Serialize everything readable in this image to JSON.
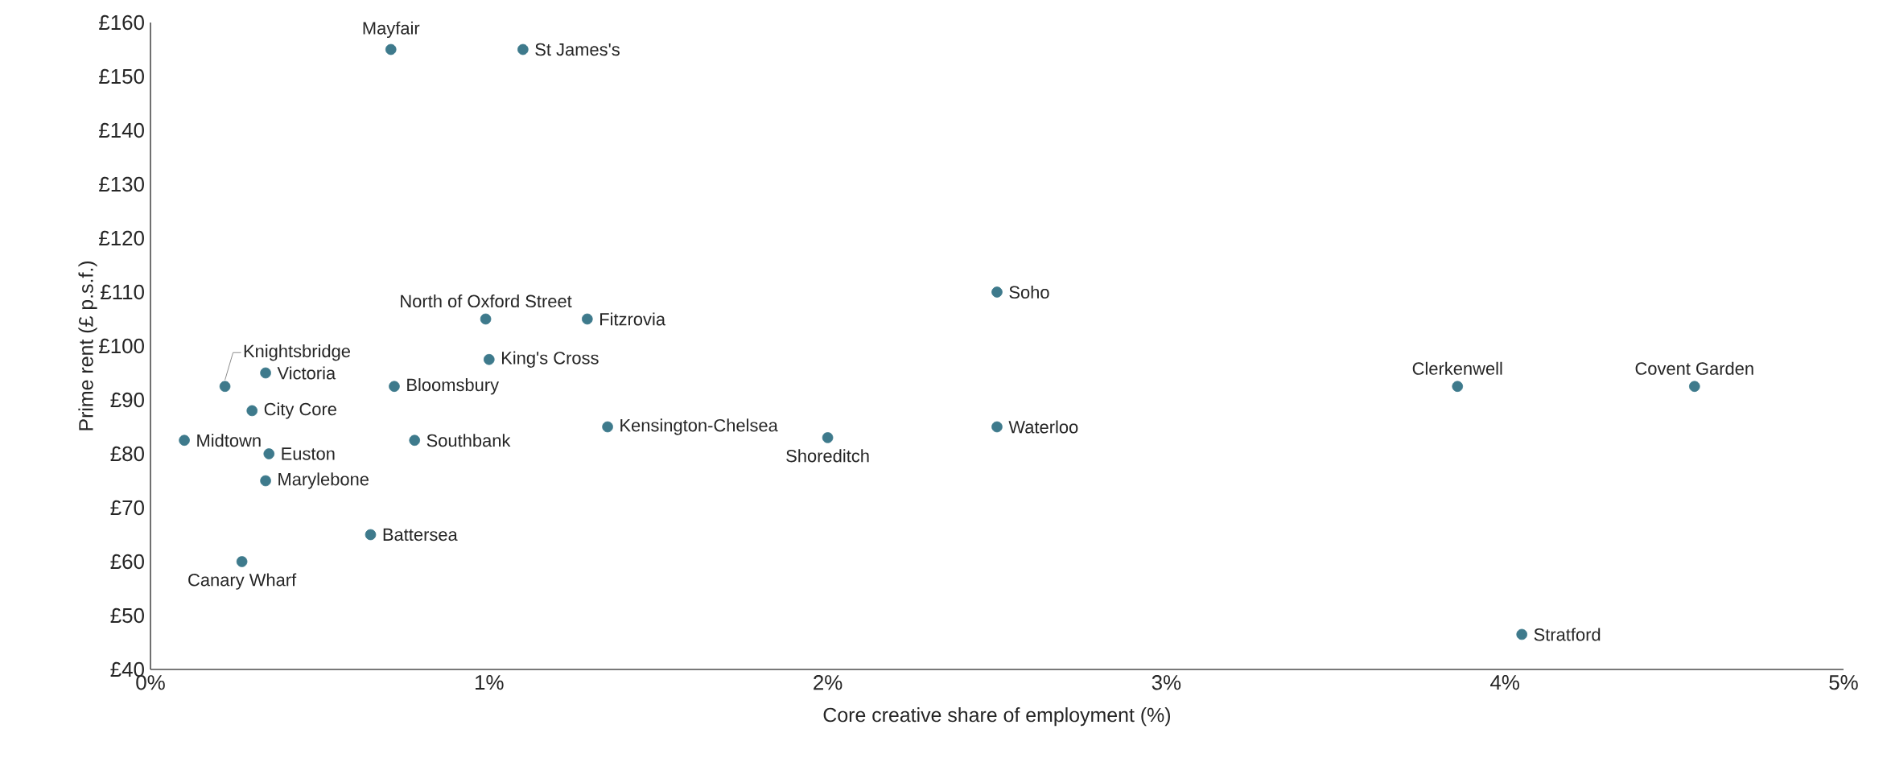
{
  "chart_data": {
    "type": "scatter",
    "xlabel": "Core creative share of employment (%)",
    "ylabel": "Prime rent (£ p.s.f.)",
    "x": [
      0.71,
      1.1,
      0.99,
      1.29,
      2.5,
      1.0,
      0.22,
      0.34,
      0.72,
      0.3,
      0.1,
      0.35,
      0.34,
      0.78,
      1.35,
      2.0,
      2.5,
      3.86,
      4.56,
      0.65,
      0.27,
      4.05
    ],
    "series": [
      {
        "color": "#3e7a8c",
        "values": [
          155,
          155,
          105,
          105,
          110,
          97.5,
          92.5,
          95,
          92.5,
          88,
          82.5,
          80,
          75,
          82.5,
          85,
          83,
          85,
          92.5,
          92.5,
          65,
          60,
          46.5
        ]
      }
    ],
    "annotations": [
      {
        "text": "Mayfair",
        "x": 0.71,
        "y": 155
      },
      {
        "text": "St James's",
        "x": 1.1,
        "y": 155
      },
      {
        "text": "North of Oxford Street",
        "x": 0.99,
        "y": 105
      },
      {
        "text": "Fitzrovia",
        "x": 1.29,
        "y": 105
      },
      {
        "text": "Soho",
        "x": 2.5,
        "y": 110
      },
      {
        "text": "King's Cross",
        "x": 1.0,
        "y": 97.5
      },
      {
        "text": "Knightsbridge",
        "x": 0.22,
        "y": 92.5
      },
      {
        "text": "Victoria",
        "x": 0.34,
        "y": 95
      },
      {
        "text": "Bloomsbury",
        "x": 0.72,
        "y": 92.5
      },
      {
        "text": "City Core",
        "x": 0.3,
        "y": 88
      },
      {
        "text": "Midtown",
        "x": 0.1,
        "y": 82.5
      },
      {
        "text": "Euston",
        "x": 0.35,
        "y": 80
      },
      {
        "text": "Marylebone",
        "x": 0.34,
        "y": 75
      },
      {
        "text": "Southbank",
        "x": 0.78,
        "y": 82.5
      },
      {
        "text": "Kensington-Chelsea",
        "x": 1.35,
        "y": 85
      },
      {
        "text": "Shoreditch",
        "x": 2.0,
        "y": 83
      },
      {
        "text": "Waterloo",
        "x": 2.5,
        "y": 85
      },
      {
        "text": "Clerkenwell",
        "x": 3.86,
        "y": 92.5
      },
      {
        "text": "Covent Garden",
        "x": 4.56,
        "y": 92.5
      },
      {
        "text": "Battersea",
        "x": 0.65,
        "y": 65
      },
      {
        "text": "Canary Wharf",
        "x": 0.27,
        "y": 60
      },
      {
        "text": "Stratford",
        "x": 4.05,
        "y": 46.5
      }
    ],
    "xlim": [
      0,
      5
    ],
    "ylim": [
      40,
      160
    ],
    "xticks": [
      {
        "value": 0,
        "label": "0%"
      },
      {
        "value": 1,
        "label": "1%"
      },
      {
        "value": 2,
        "label": "2%"
      },
      {
        "value": 3,
        "label": "3%"
      },
      {
        "value": 4,
        "label": "4%"
      },
      {
        "value": 5,
        "label": "5%"
      }
    ],
    "yticks": [
      {
        "value": 40,
        "label": "£40"
      },
      {
        "value": 50,
        "label": "£50"
      },
      {
        "value": 60,
        "label": "£60"
      },
      {
        "value": 70,
        "label": "£70"
      },
      {
        "value": 80,
        "label": "£80"
      },
      {
        "value": 90,
        "label": "£90"
      },
      {
        "value": 100,
        "label": "£100"
      },
      {
        "value": 110,
        "label": "£110"
      },
      {
        "value": 120,
        "label": "£120"
      },
      {
        "value": 130,
        "label": "£130"
      },
      {
        "value": 140,
        "label": "£140"
      },
      {
        "value": 150,
        "label": "£150"
      },
      {
        "value": 160,
        "label": "£160"
      }
    ],
    "marker": "circle",
    "grid": false
  }
}
